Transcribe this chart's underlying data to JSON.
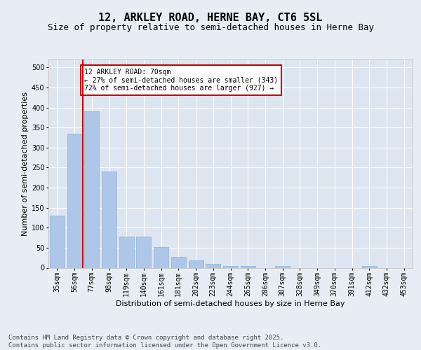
{
  "title": "12, ARKLEY ROAD, HERNE BAY, CT6 5SL",
  "subtitle": "Size of property relative to semi-detached houses in Herne Bay",
  "xlabel": "Distribution of semi-detached houses by size in Herne Bay",
  "ylabel": "Number of semi-detached properties",
  "categories": [
    "35sqm",
    "56sqm",
    "77sqm",
    "98sqm",
    "119sqm",
    "140sqm",
    "161sqm",
    "181sqm",
    "202sqm",
    "223sqm",
    "244sqm",
    "265sqm",
    "286sqm",
    "307sqm",
    "328sqm",
    "349sqm",
    "370sqm",
    "391sqm",
    "412sqm",
    "432sqm",
    "453sqm"
  ],
  "values": [
    130,
    335,
    390,
    240,
    78,
    78,
    52,
    27,
    18,
    10,
    5,
    5,
    0,
    5,
    0,
    0,
    0,
    0,
    5,
    0,
    0
  ],
  "bar_color": "#aec6e8",
  "bar_edge_color": "#8ab4d8",
  "vline_color": "#cc0000",
  "vline_x_idx": 2,
  "annotation_text": "12 ARKLEY ROAD: 70sqm\n← 27% of semi-detached houses are smaller (343)\n72% of semi-detached houses are larger (927) →",
  "annotation_box_color": "#ffffff",
  "annotation_box_edge": "#cc0000",
  "footer": "Contains HM Land Registry data © Crown copyright and database right 2025.\nContains public sector information licensed under the Open Government Licence v3.0.",
  "ylim": [
    0,
    520
  ],
  "yticks": [
    0,
    50,
    100,
    150,
    200,
    250,
    300,
    350,
    400,
    450,
    500
  ],
  "bg_color": "#e8edf5",
  "plot_bg_color": "#dce5f0",
  "grid_color": "#ffffff",
  "title_fontsize": 11,
  "subtitle_fontsize": 9,
  "axis_label_fontsize": 8,
  "tick_fontsize": 7,
  "annotation_fontsize": 7,
  "footer_fontsize": 6.5
}
